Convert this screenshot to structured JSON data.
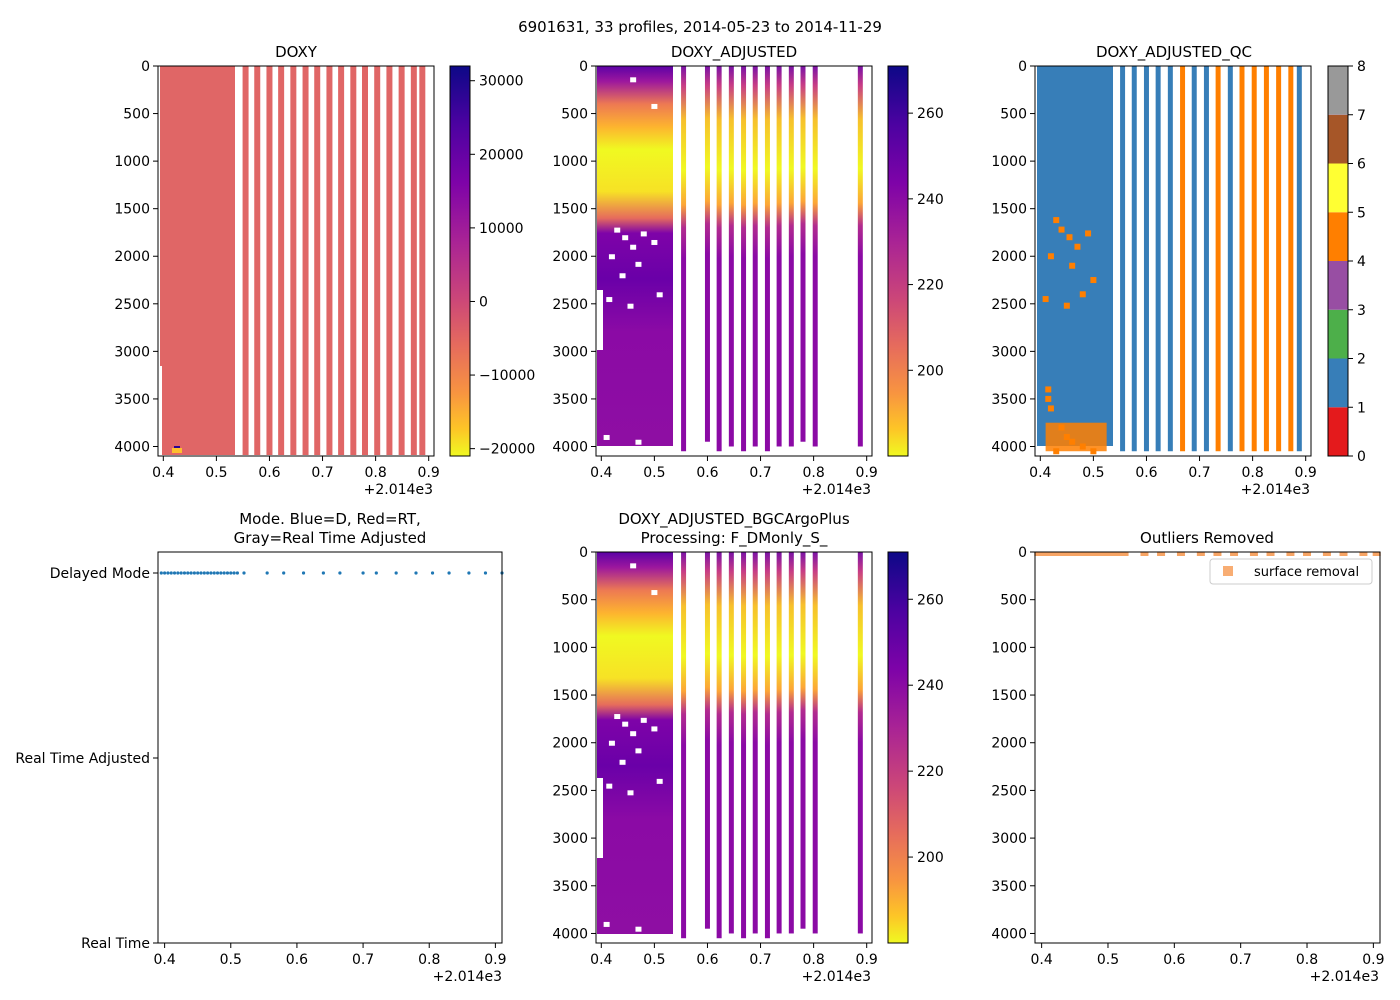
{
  "suptitle": "6901631, 33 profiles, 2014-05-23 to 2014-11-29",
  "colors": {
    "doxy_fill": "#e06666",
    "qc_blue": "#377eb8",
    "qc_orange": "#ff7f00",
    "mode_dot": "#1f77b4",
    "surface_marker": "#f7a464"
  },
  "chart_data": [
    {
      "panel": "doxy",
      "type": "heatmap",
      "title": "DOXY",
      "xlim": [
        0.39,
        0.91
      ],
      "xticks": [
        "0.4",
        "0.5",
        "0.6",
        "0.7",
        "0.8",
        "0.9"
      ],
      "x_offset_label": "+2.014e3",
      "ylim": [
        4100,
        0
      ],
      "yticks": [
        "0",
        "500",
        "1000",
        "1500",
        "2000",
        "2500",
        "3000",
        "3500",
        "4000"
      ],
      "profile_columns_x": [
        0.555,
        0.577,
        0.6,
        0.622,
        0.645,
        0.668,
        0.69,
        0.713,
        0.735,
        0.758,
        0.78,
        0.803,
        0.826,
        0.849,
        0.872,
        0.888
      ],
      "block_x_range": [
        0.394,
        0.533
      ],
      "colorbar": {
        "colormap": "plasma_r",
        "range": [
          -21000,
          32000
        ],
        "ticks": [
          "30000",
          "20000",
          "10000",
          "0",
          "−10000",
          "−20000"
        ]
      }
    },
    {
      "panel": "doxy_adjusted",
      "type": "heatmap",
      "title": "DOXY_ADJUSTED",
      "xlim": [
        0.39,
        0.91
      ],
      "xticks": [
        "0.4",
        "0.5",
        "0.6",
        "0.7",
        "0.8",
        "0.9"
      ],
      "x_offset_label": "+2.014e3",
      "ylim": [
        4100,
        0
      ],
      "yticks": [
        "0",
        "500",
        "1000",
        "1500",
        "2000",
        "2500",
        "3000",
        "3500",
        "4000"
      ],
      "colorbar": {
        "colormap": "plasma_r",
        "range": [
          180,
          271
        ],
        "ticks": [
          "260",
          "240",
          "220",
          "200"
        ]
      }
    },
    {
      "panel": "doxy_adjusted_qc",
      "type": "heatmap",
      "title": "DOXY_ADJUSTED_QC",
      "xlim": [
        0.39,
        0.91
      ],
      "xticks": [
        "0.4",
        "0.5",
        "0.6",
        "0.7",
        "0.8",
        "0.9"
      ],
      "x_offset_label": "+2.014e3",
      "ylim": [
        4100,
        0
      ],
      "yticks": [
        "0",
        "500",
        "1000",
        "1500",
        "2000",
        "2500",
        "3000",
        "3500",
        "4000"
      ],
      "colorbar": {
        "colormap": "Set1",
        "range": [
          0,
          8
        ],
        "ticks": [
          "8",
          "7",
          "6",
          "5",
          "4",
          "3",
          "2",
          "1",
          "0"
        ],
        "classes": [
          "#e41a1c",
          "#377eb8",
          "#4daf4a",
          "#984ea3",
          "#ff7f00",
          "#ffff33",
          "#a65628",
          "#f781bf",
          "#999999"
        ]
      }
    },
    {
      "panel": "mode",
      "type": "scatter",
      "title_line1": "Mode. Blue=D, Red=RT,",
      "title_line2": "Gray=Real Time Adjusted",
      "xlim": [
        0.39,
        0.91
      ],
      "xticks": [
        "0.4",
        "0.5",
        "0.6",
        "0.7",
        "0.8",
        "0.9"
      ],
      "x_offset_label": "+2.014e3",
      "ycategories": [
        "Delayed Mode",
        "Real Time Adjusted",
        "Real Time"
      ],
      "points_x": [
        0.395,
        0.4,
        0.405,
        0.41,
        0.415,
        0.42,
        0.425,
        0.43,
        0.435,
        0.44,
        0.445,
        0.45,
        0.455,
        0.46,
        0.465,
        0.47,
        0.475,
        0.48,
        0.485,
        0.49,
        0.495,
        0.5,
        0.505,
        0.51,
        0.52,
        0.555,
        0.58,
        0.61,
        0.64,
        0.665,
        0.7,
        0.72,
        0.75,
        0.78,
        0.805,
        0.83,
        0.86,
        0.885,
        0.91
      ],
      "points_mode": "Delayed Mode"
    },
    {
      "panel": "doxy_adjusted_bgc",
      "type": "heatmap",
      "title_line1": "DOXY_ADJUSTED_BGCArgoPlus",
      "title_line2": "Processing: F_DMonly_S_",
      "xlim": [
        0.39,
        0.91
      ],
      "xticks": [
        "0.4",
        "0.5",
        "0.6",
        "0.7",
        "0.8",
        "0.9"
      ],
      "x_offset_label": "+2.014e3",
      "ylim": [
        4100,
        0
      ],
      "yticks": [
        "0",
        "500",
        "1000",
        "1500",
        "2000",
        "2500",
        "3000",
        "3500",
        "4000"
      ],
      "colorbar": {
        "colormap": "plasma_r",
        "range": [
          180,
          271
        ],
        "ticks": [
          "260",
          "240",
          "220",
          "200"
        ]
      }
    },
    {
      "panel": "outliers",
      "type": "scatter",
      "title": "Outliers Removed",
      "xlim": [
        0.39,
        0.91
      ],
      "xticks": [
        "0.4",
        "0.5",
        "0.6",
        "0.7",
        "0.8",
        "0.9"
      ],
      "x_offset_label": "+2.014e3",
      "ylim": [
        4100,
        0
      ],
      "yticks": [
        "0",
        "500",
        "1000",
        "1500",
        "2000",
        "2500",
        "3000",
        "3500",
        "4000"
      ],
      "legend": {
        "label": "surface removal",
        "placement": "top-right"
      },
      "points_x": [
        0.395,
        0.405,
        0.415,
        0.425,
        0.435,
        0.445,
        0.455,
        0.465,
        0.475,
        0.485,
        0.495,
        0.505,
        0.515,
        0.525,
        0.555,
        0.58,
        0.61,
        0.64,
        0.665,
        0.69,
        0.72,
        0.745,
        0.775,
        0.8,
        0.83,
        0.855,
        0.885,
        0.905
      ],
      "points_depth": 0
    }
  ]
}
